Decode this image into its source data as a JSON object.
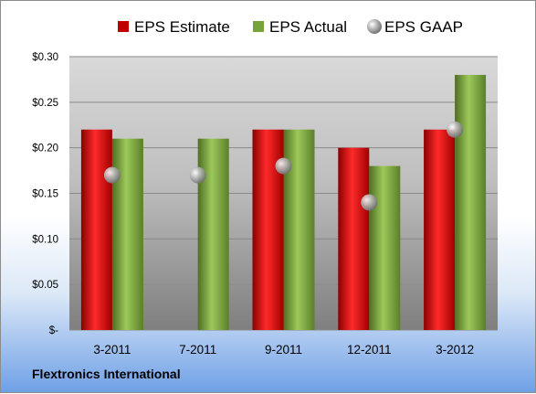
{
  "chart_data": {
    "type": "bar",
    "categories": [
      "3-2011",
      "7-2011",
      "9-2011",
      "12-2011",
      "3-2012"
    ],
    "series": [
      {
        "name": "EPS Estimate",
        "kind": "bar",
        "color": "#c00000",
        "values": [
          0.22,
          null,
          0.22,
          0.2,
          0.22
        ]
      },
      {
        "name": "EPS Actual",
        "kind": "bar",
        "color": "#77a33a",
        "values": [
          0.21,
          0.21,
          0.22,
          0.18,
          0.28
        ]
      },
      {
        "name": "EPS GAAP",
        "kind": "marker",
        "color": "#a6a6a6",
        "values": [
          0.17,
          0.17,
          0.18,
          0.14,
          0.22
        ]
      }
    ],
    "ylim": [
      0,
      0.3
    ],
    "yticks": [
      {
        "value": 0.3,
        "label": "$0.30"
      },
      {
        "value": 0.25,
        "label": "$0.25"
      },
      {
        "value": 0.2,
        "label": "$0.20"
      },
      {
        "value": 0.15,
        "label": "$0.15"
      },
      {
        "value": 0.1,
        "label": "$0.10"
      },
      {
        "value": 0.05,
        "label": "$0.05"
      },
      {
        "value": 0.0,
        "label": "$-"
      }
    ],
    "grid": true,
    "legend_position": "top"
  },
  "company": "Flextronics International"
}
